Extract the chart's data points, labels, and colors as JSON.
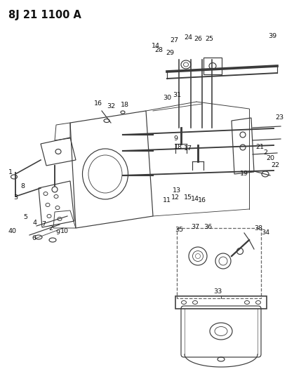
{
  "title": "8J 21 1100 A",
  "bg_color": "#ffffff",
  "title_fontsize": 10.5
}
